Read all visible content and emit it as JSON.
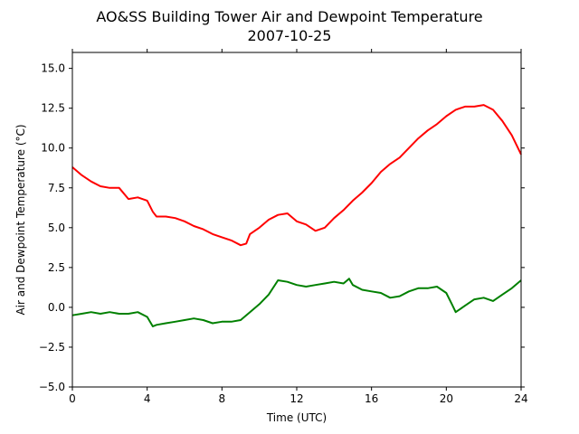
{
  "chart_data": {
    "type": "line",
    "title": "AO&SS Building Tower Air and Dewpoint Temperature",
    "subtitle": "2007-10-25",
    "xlabel": "Time (UTC)",
    "ylabel": "Air and Dewpoint Temperature (°C)",
    "xlim": [
      0,
      24
    ],
    "ylim": [
      -5.0,
      16.0
    ],
    "x_ticks": [
      0,
      4,
      8,
      12,
      16,
      20,
      24
    ],
    "x_tick_labels": [
      "0",
      "4",
      "8",
      "12",
      "16",
      "20",
      "24"
    ],
    "y_ticks": [
      -5.0,
      -2.5,
      0.0,
      2.5,
      5.0,
      7.5,
      10.0,
      12.5,
      15.0
    ],
    "y_tick_labels": [
      "−5.0",
      "−2.5",
      "0.0",
      "2.5",
      "5.0",
      "7.5",
      "10.0",
      "12.5",
      "15.0"
    ],
    "grid": false,
    "series": [
      {
        "color": "#ff0000",
        "x": [
          0,
          0.5,
          1,
          1.5,
          2,
          2.5,
          3,
          3.5,
          4,
          4.3,
          4.5,
          5,
          5.5,
          6,
          6.5,
          7,
          7.5,
          8,
          8.5,
          9,
          9.3,
          9.5,
          10,
          10.5,
          11,
          11.5,
          12,
          12.5,
          13,
          13.5,
          14,
          14.5,
          15,
          15.5,
          16,
          16.5,
          17,
          17.5,
          18,
          18.5,
          19,
          19.5,
          20,
          20.5,
          21,
          21.5,
          22,
          22.5,
          23,
          23.5,
          24
        ],
        "y": [
          8.8,
          8.3,
          7.9,
          7.6,
          7.5,
          7.5,
          6.8,
          6.9,
          6.7,
          6.0,
          5.7,
          5.7,
          5.6,
          5.4,
          5.1,
          4.9,
          4.6,
          4.4,
          4.2,
          3.9,
          4.0,
          4.6,
          5.0,
          5.5,
          5.8,
          5.9,
          5.4,
          5.2,
          4.8,
          5.0,
          5.6,
          6.1,
          6.7,
          7.2,
          7.8,
          8.5,
          9.0,
          9.4,
          10.0,
          10.6,
          11.1,
          11.5,
          12.0,
          12.4,
          12.6,
          12.6,
          12.7,
          12.4,
          11.7,
          10.8,
          9.6
        ]
      },
      {
        "color": "#008000",
        "x": [
          0,
          0.5,
          1,
          1.5,
          2,
          2.5,
          3,
          3.5,
          4,
          4.3,
          4.5,
          5,
          5.5,
          6,
          6.5,
          7,
          7.5,
          8,
          8.5,
          9,
          9.5,
          10,
          10.5,
          11,
          11.5,
          12,
          12.5,
          13,
          13.5,
          14,
          14.5,
          14.8,
          15,
          15.5,
          16,
          16.5,
          17,
          17.5,
          18,
          18.5,
          19,
          19.5,
          20,
          20.3,
          20.5,
          21,
          21.5,
          22,
          22.5,
          23,
          23.5,
          24
        ],
        "y": [
          -0.5,
          -0.4,
          -0.3,
          -0.4,
          -0.3,
          -0.4,
          -0.4,
          -0.3,
          -0.6,
          -1.2,
          -1.1,
          -1.0,
          -0.9,
          -0.8,
          -0.7,
          -0.8,
          -1.0,
          -0.9,
          -0.9,
          -0.8,
          -0.3,
          0.2,
          0.8,
          1.7,
          1.6,
          1.4,
          1.3,
          1.4,
          1.5,
          1.6,
          1.5,
          1.8,
          1.4,
          1.1,
          1.0,
          0.9,
          0.6,
          0.7,
          1.0,
          1.2,
          1.2,
          1.3,
          0.9,
          0.2,
          -0.3,
          0.1,
          0.5,
          0.6,
          0.4,
          0.8,
          1.2,
          1.7
        ]
      }
    ]
  }
}
